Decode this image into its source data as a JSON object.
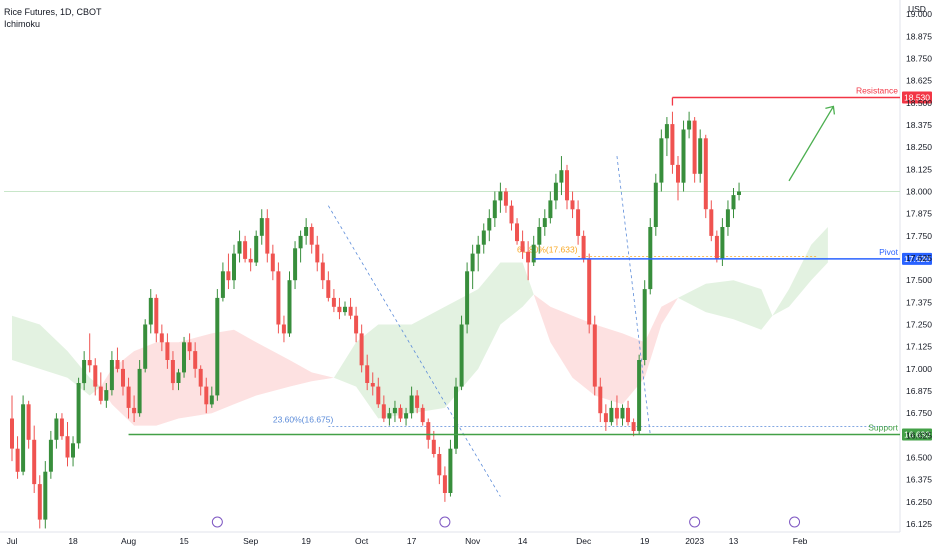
{
  "header": {
    "symbol": "Rice Futures, 1D, CBOT",
    "indicator": "Ichimoku"
  },
  "colors": {
    "up": "#388e3c",
    "down": "#ef5350",
    "resistance": "#f23645",
    "pivot": "#2962ff",
    "support": "#43a047",
    "cloud_bull": "#e3f2e1",
    "cloud_bear": "#fde1e1",
    "fib": "#5b8bd9",
    "arrow": "#4caf50"
  },
  "chart_data": {
    "type": "candlestick",
    "currency": "USD",
    "ylim": [
      16.08,
      19.08
    ],
    "yticks": [
      "19.000",
      "18.875",
      "18.750",
      "18.625",
      "18.500",
      "18.375",
      "18.250",
      "18.125",
      "18.000",
      "17.875",
      "17.750",
      "17.625",
      "17.500",
      "17.375",
      "17.250",
      "17.125",
      "17.000",
      "16.875",
      "16.750",
      "16.625",
      "16.500",
      "16.375",
      "16.250",
      "16.125"
    ],
    "xticks": [
      {
        "label": "Jul",
        "i": 0
      },
      {
        "label": "18",
        "i": 11
      },
      {
        "label": "Aug",
        "i": 21
      },
      {
        "label": "15",
        "i": 31
      },
      {
        "label": "Sep",
        "i": 43
      },
      {
        "label": "19",
        "i": 53
      },
      {
        "label": "Oct",
        "i": 63
      },
      {
        "label": "17",
        "i": 72
      },
      {
        "label": "Nov",
        "i": 83
      },
      {
        "label": "14",
        "i": 92
      },
      {
        "label": "Dec",
        "i": 103
      },
      {
        "label": "19",
        "i": 114
      },
      {
        "label": "2023",
        "i": 123
      },
      {
        "label": "13",
        "i": 130
      },
      {
        "label": "Feb",
        "i": 142
      }
    ],
    "levels": [
      {
        "name": "Resistance",
        "value": 18.53,
        "label": "18.530",
        "from_i": 119
      },
      {
        "name": "Pivot",
        "value": 17.62,
        "label": "17.620",
        "from_i": 94
      },
      {
        "name": "Support",
        "value": 16.63,
        "label": "16.630",
        "from_i": 21
      }
    ],
    "fib_labels": [
      {
        "text": "23.60%(16.675)",
        "value": 16.675,
        "i": 47
      },
      {
        "text": "61.80%(17.633)",
        "value": 17.633,
        "i": 91
      }
    ],
    "candles": [
      [
        16.72,
        16.85,
        16.48,
        16.55
      ],
      [
        16.55,
        16.62,
        16.38,
        16.42
      ],
      [
        16.42,
        16.85,
        16.4,
        16.8
      ],
      [
        16.8,
        16.82,
        16.55,
        16.6
      ],
      [
        16.6,
        16.68,
        16.3,
        16.35
      ],
      [
        16.35,
        16.4,
        16.1,
        16.15
      ],
      [
        16.15,
        16.48,
        16.1,
        16.42
      ],
      [
        16.42,
        16.65,
        16.38,
        16.6
      ],
      [
        16.6,
        16.75,
        16.55,
        16.72
      ],
      [
        16.72,
        16.75,
        16.6,
        16.62
      ],
      [
        16.62,
        16.7,
        16.45,
        16.5
      ],
      [
        16.5,
        16.62,
        16.45,
        16.58
      ],
      [
        16.58,
        16.95,
        16.55,
        16.92
      ],
      [
        16.92,
        17.1,
        16.88,
        17.05
      ],
      [
        17.05,
        17.2,
        16.98,
        17.02
      ],
      [
        17.02,
        17.06,
        16.85,
        16.9
      ],
      [
        16.9,
        16.98,
        16.8,
        16.82
      ],
      [
        16.82,
        16.92,
        16.78,
        16.88
      ],
      [
        16.88,
        17.1,
        16.85,
        17.05
      ],
      [
        17.05,
        17.12,
        16.98,
        17.0
      ],
      [
        17.0,
        17.05,
        16.85,
        16.9
      ],
      [
        16.9,
        16.95,
        16.72,
        16.78
      ],
      [
        16.78,
        16.85,
        16.7,
        16.75
      ],
      [
        16.75,
        17.05,
        16.73,
        17.0
      ],
      [
        17.0,
        17.28,
        16.98,
        17.25
      ],
      [
        17.25,
        17.45,
        17.2,
        17.4
      ],
      [
        17.4,
        17.42,
        17.15,
        17.2
      ],
      [
        17.2,
        17.25,
        17.1,
        17.15
      ],
      [
        17.15,
        17.2,
        17.0,
        17.05
      ],
      [
        17.05,
        17.1,
        16.88,
        16.92
      ],
      [
        16.92,
        17.0,
        16.88,
        16.98
      ],
      [
        16.98,
        17.18,
        16.95,
        17.15
      ],
      [
        17.15,
        17.2,
        17.05,
        17.1
      ],
      [
        17.1,
        17.15,
        16.95,
        17.0
      ],
      [
        17.0,
        17.02,
        16.85,
        16.9
      ],
      [
        16.9,
        16.95,
        16.75,
        16.8
      ],
      [
        16.8,
        16.9,
        16.78,
        16.85
      ],
      [
        16.85,
        17.45,
        16.82,
        17.4
      ],
      [
        17.4,
        17.6,
        17.38,
        17.55
      ],
      [
        17.55,
        17.65,
        17.45,
        17.5
      ],
      [
        17.5,
        17.7,
        17.45,
        17.65
      ],
      [
        17.65,
        17.78,
        17.6,
        17.72
      ],
      [
        17.72,
        17.75,
        17.6,
        17.62
      ],
      [
        17.62,
        17.68,
        17.55,
        17.6
      ],
      [
        17.6,
        17.78,
        17.58,
        17.75
      ],
      [
        17.75,
        17.9,
        17.7,
        17.85
      ],
      [
        17.85,
        17.9,
        17.6,
        17.65
      ],
      [
        17.65,
        17.7,
        17.5,
        17.55
      ],
      [
        17.55,
        17.6,
        17.2,
        17.25
      ],
      [
        17.25,
        17.3,
        17.15,
        17.2
      ],
      [
        17.2,
        17.55,
        17.18,
        17.5
      ],
      [
        17.5,
        17.72,
        17.45,
        17.68
      ],
      [
        17.68,
        17.78,
        17.6,
        17.75
      ],
      [
        17.75,
        17.85,
        17.7,
        17.8
      ],
      [
        17.8,
        17.82,
        17.65,
        17.7
      ],
      [
        17.7,
        17.75,
        17.55,
        17.6
      ],
      [
        17.6,
        17.65,
        17.45,
        17.5
      ],
      [
        17.5,
        17.55,
        17.38,
        17.4
      ],
      [
        17.4,
        17.45,
        17.32,
        17.35
      ],
      [
        17.35,
        17.4,
        17.28,
        17.32
      ],
      [
        17.32,
        17.38,
        17.3,
        17.35
      ],
      [
        17.35,
        17.4,
        17.28,
        17.3
      ],
      [
        17.3,
        17.35,
        17.15,
        17.2
      ],
      [
        17.2,
        17.25,
        16.98,
        17.02
      ],
      [
        17.02,
        17.08,
        16.88,
        16.92
      ],
      [
        16.92,
        16.98,
        16.85,
        16.9
      ],
      [
        16.9,
        16.95,
        16.78,
        16.8
      ],
      [
        16.8,
        16.85,
        16.7,
        16.72
      ],
      [
        16.72,
        16.78,
        16.68,
        16.75
      ],
      [
        16.75,
        16.82,
        16.7,
        16.78
      ],
      [
        16.78,
        16.8,
        16.7,
        16.72
      ],
      [
        16.72,
        16.78,
        16.68,
        16.75
      ],
      [
        16.75,
        16.9,
        16.72,
        16.85
      ],
      [
        16.85,
        16.88,
        16.75,
        16.78
      ],
      [
        16.78,
        16.8,
        16.68,
        16.7
      ],
      [
        16.7,
        16.72,
        16.55,
        16.6
      ],
      [
        16.6,
        16.65,
        16.5,
        16.52
      ],
      [
        16.52,
        16.56,
        16.35,
        16.4
      ],
      [
        16.4,
        16.45,
        16.25,
        16.3
      ],
      [
        16.3,
        16.6,
        16.28,
        16.55
      ],
      [
        16.55,
        16.95,
        16.52,
        16.9
      ],
      [
        16.9,
        17.3,
        16.88,
        17.25
      ],
      [
        17.25,
        17.6,
        17.2,
        17.55
      ],
      [
        17.55,
        17.7,
        17.45,
        17.65
      ],
      [
        17.65,
        17.75,
        17.55,
        17.7
      ],
      [
        17.7,
        17.82,
        17.65,
        17.78
      ],
      [
        17.78,
        17.9,
        17.72,
        17.85
      ],
      [
        17.85,
        18.0,
        17.8,
        17.95
      ],
      [
        17.95,
        18.05,
        17.88,
        18.0
      ],
      [
        18.0,
        18.02,
        17.88,
        17.92
      ],
      [
        17.92,
        17.95,
        17.78,
        17.82
      ],
      [
        17.82,
        17.85,
        17.7,
        17.72
      ],
      [
        17.72,
        17.78,
        17.62,
        17.66
      ],
      [
        17.66,
        17.72,
        17.5,
        17.6
      ],
      [
        17.6,
        17.75,
        17.58,
        17.7
      ],
      [
        17.7,
        17.85,
        17.65,
        17.8
      ],
      [
        17.8,
        17.9,
        17.75,
        17.85
      ],
      [
        17.85,
        18.0,
        17.82,
        17.95
      ],
      [
        17.95,
        18.1,
        17.9,
        18.05
      ],
      [
        18.05,
        18.2,
        17.98,
        18.12
      ],
      [
        18.12,
        18.15,
        17.9,
        17.95
      ],
      [
        17.95,
        18.0,
        17.85,
        17.9
      ],
      [
        17.9,
        17.95,
        17.7,
        17.75
      ],
      [
        17.75,
        17.78,
        17.6,
        17.62
      ],
      [
        17.62,
        17.65,
        17.2,
        17.25
      ],
      [
        17.25,
        17.3,
        16.85,
        16.9
      ],
      [
        16.9,
        16.95,
        16.7,
        16.75
      ],
      [
        16.75,
        16.8,
        16.65,
        16.7
      ],
      [
        16.7,
        16.82,
        16.68,
        16.78
      ],
      [
        16.78,
        16.85,
        16.68,
        16.72
      ],
      [
        16.72,
        16.8,
        16.68,
        16.78
      ],
      [
        16.78,
        16.82,
        16.68,
        16.7
      ],
      [
        16.7,
        16.72,
        16.62,
        16.65
      ],
      [
        16.65,
        17.08,
        16.63,
        17.05
      ],
      [
        17.05,
        17.5,
        17.02,
        17.45
      ],
      [
        17.45,
        17.85,
        17.42,
        17.8
      ],
      [
        17.8,
        18.1,
        17.75,
        18.05
      ],
      [
        18.05,
        18.35,
        18.0,
        18.3
      ],
      [
        18.3,
        18.42,
        18.2,
        18.38
      ],
      [
        18.38,
        18.45,
        18.1,
        18.15
      ],
      [
        18.15,
        18.2,
        17.95,
        18.05
      ],
      [
        18.05,
        18.4,
        18.0,
        18.35
      ],
      [
        18.35,
        18.45,
        18.3,
        18.4
      ],
      [
        18.4,
        18.42,
        18.05,
        18.1
      ],
      [
        18.1,
        18.35,
        18.05,
        18.3
      ],
      [
        18.3,
        18.32,
        17.85,
        17.9
      ],
      [
        17.9,
        17.95,
        17.72,
        17.75
      ],
      [
        17.75,
        17.78,
        17.6,
        17.62
      ],
      [
        17.62,
        17.85,
        17.58,
        17.8
      ],
      [
        17.8,
        17.95,
        17.75,
        17.9
      ],
      [
        17.9,
        18.02,
        17.85,
        17.98
      ],
      [
        17.98,
        18.05,
        17.95,
        18.0
      ]
    ],
    "cloud_bull": [
      {
        "i": 0,
        "a": 17.05,
        "b": 17.3
      },
      {
        "i": 5,
        "a": 17.0,
        "b": 17.25
      },
      {
        "i": 10,
        "a": 16.95,
        "b": 17.1
      },
      {
        "i": 14,
        "a": 16.85,
        "b": 16.95
      },
      {
        "i": 16,
        "a": 16.9,
        "b": 16.9
      },
      {
        "i": 58,
        "a": 16.95,
        "b": 16.95
      },
      {
        "i": 62,
        "a": 16.9,
        "b": 17.15
      },
      {
        "i": 66,
        "a": 16.72,
        "b": 17.25
      },
      {
        "i": 72,
        "a": 16.75,
        "b": 17.25
      },
      {
        "i": 78,
        "a": 16.78,
        "b": 17.35
      },
      {
        "i": 84,
        "a": 17.0,
        "b": 17.45
      },
      {
        "i": 88,
        "a": 17.25,
        "b": 17.6
      },
      {
        "i": 92,
        "a": 17.35,
        "b": 17.6
      },
      {
        "i": 94,
        "a": 17.42,
        "b": 17.42
      },
      {
        "i": 120,
        "a": 17.4,
        "b": 17.4
      },
      {
        "i": 125,
        "a": 17.32,
        "b": 17.48
      },
      {
        "i": 130,
        "a": 17.28,
        "b": 17.5
      },
      {
        "i": 135,
        "a": 17.22,
        "b": 17.45
      },
      {
        "i": 137,
        "a": 17.3,
        "b": 17.3
      },
      {
        "i": 140,
        "a": 17.35,
        "b": 17.45
      },
      {
        "i": 144,
        "a": 17.5,
        "b": 17.7
      },
      {
        "i": 147,
        "a": 17.6,
        "b": 17.8
      }
    ],
    "cloud_bear": [
      {
        "i": 16,
        "a": 16.9,
        "b": 16.9
      },
      {
        "i": 18,
        "a": 16.8,
        "b": 17.0
      },
      {
        "i": 22,
        "a": 16.68,
        "b": 17.1
      },
      {
        "i": 26,
        "a": 16.68,
        "b": 17.15
      },
      {
        "i": 30,
        "a": 16.72,
        "b": 17.15
      },
      {
        "i": 36,
        "a": 16.75,
        "b": 17.2
      },
      {
        "i": 40,
        "a": 16.8,
        "b": 17.22
      },
      {
        "i": 44,
        "a": 16.85,
        "b": 17.15
      },
      {
        "i": 50,
        "a": 16.9,
        "b": 17.05
      },
      {
        "i": 54,
        "a": 16.93,
        "b": 16.98
      },
      {
        "i": 58,
        "a": 16.95,
        "b": 16.95
      },
      {
        "i": 94,
        "a": 17.42,
        "b": 17.42
      },
      {
        "i": 97,
        "a": 17.15,
        "b": 17.35
      },
      {
        "i": 101,
        "a": 16.95,
        "b": 17.3
      },
      {
        "i": 105,
        "a": 16.85,
        "b": 17.25
      },
      {
        "i": 110,
        "a": 16.8,
        "b": 17.2
      },
      {
        "i": 114,
        "a": 16.95,
        "b": 17.15
      },
      {
        "i": 117,
        "a": 17.25,
        "b": 17.35
      },
      {
        "i": 120,
        "a": 17.4,
        "b": 17.4
      }
    ]
  }
}
